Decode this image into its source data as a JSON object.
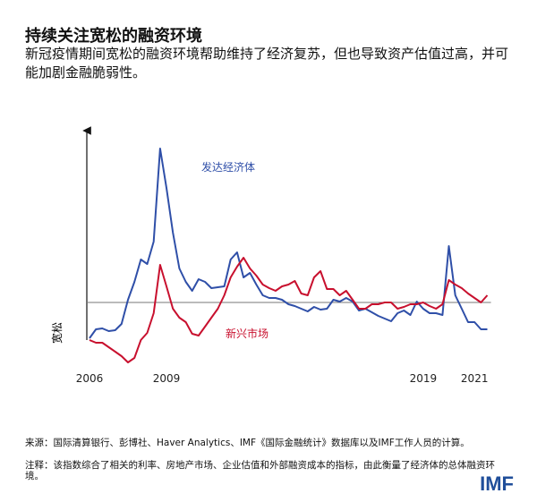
{
  "chart_data": {
    "type": "line",
    "title": "持续关注宽松的融资环境",
    "subtitle": "新冠疫情期间宽松的融资环境帮助维持了经济复苏，但也导致资产估值过高，并可能加剧金融脆弱性。",
    "ylabel": "宽松",
    "categories": [
      "2006",
      null,
      null,
      null,
      null,
      null,
      null,
      null,
      null,
      null,
      null,
      null,
      "2009",
      null,
      null,
      null,
      null,
      null,
      null,
      null,
      null,
      null,
      null,
      null,
      null,
      null,
      null,
      null,
      null,
      null,
      null,
      null,
      null,
      null,
      null,
      null,
      null,
      null,
      null,
      null,
      null,
      null,
      null,
      null,
      null,
      null,
      null,
      null,
      null,
      null,
      null,
      null,
      "2019",
      null,
      null,
      null,
      null,
      null,
      null,
      null,
      "2021",
      null,
      null
    ],
    "ylim": [
      -1.44,
      3.86
    ],
    "series": [
      {
        "name": "发达经济体",
        "color": "#2f4fa8",
        "values": [
          -0.8,
          -0.6,
          -0.58,
          -0.64,
          -0.62,
          -0.48,
          0.06,
          0.46,
          0.96,
          0.86,
          1.36,
          3.44,
          2.56,
          1.56,
          0.76,
          0.46,
          0.26,
          0.52,
          0.46,
          0.32,
          0.34,
          0.36,
          0.96,
          1.12,
          0.56,
          0.66,
          0.4,
          0.16,
          0.1,
          0.1,
          0.06,
          -0.04,
          -0.08,
          -0.14,
          -0.2,
          -0.1,
          -0.16,
          -0.14,
          0.06,
          0.02,
          0.1,
          0.02,
          -0.18,
          -0.14,
          -0.22,
          -0.3,
          -0.36,
          -0.42,
          -0.24,
          -0.18,
          -0.28,
          0.02,
          -0.14,
          -0.24,
          -0.24,
          -0.28,
          1.26,
          0.16,
          -0.14,
          -0.44,
          -0.44,
          -0.6,
          -0.6
        ]
      },
      {
        "name": "新兴市场",
        "color": "#c8102e",
        "values": [
          -0.84,
          -0.9,
          -0.9,
          -1.0,
          -1.1,
          -1.2,
          -1.34,
          -1.24,
          -0.84,
          -0.68,
          -0.24,
          0.84,
          0.36,
          -0.14,
          -0.34,
          -0.44,
          -0.7,
          -0.74,
          -0.54,
          -0.34,
          -0.14,
          0.16,
          0.56,
          0.8,
          1.0,
          0.76,
          0.6,
          0.4,
          0.32,
          0.26,
          0.36,
          0.4,
          0.48,
          0.2,
          0.16,
          0.56,
          0.7,
          0.3,
          0.3,
          0.16,
          0.26,
          0.06,
          -0.14,
          -0.14,
          -0.04,
          -0.04,
          0,
          0,
          -0.14,
          -0.1,
          -0.04,
          -0.04,
          0,
          -0.08,
          -0.14,
          -0.04,
          0.5,
          0.4,
          0.32,
          0.2,
          0.1,
          0,
          0.16
        ]
      }
    ],
    "source": "来源：国际清算银行、彭博社、Haver Analytics、IMF《国际金融统计》数据库以及IMF工作人员的计算。",
    "note": "注释：该指数综合了相关的利率、房地产市场、企业估值和外部融资成本的指标，由此衡量了经济体的总体融资环境。",
    "brand": "IMF"
  }
}
